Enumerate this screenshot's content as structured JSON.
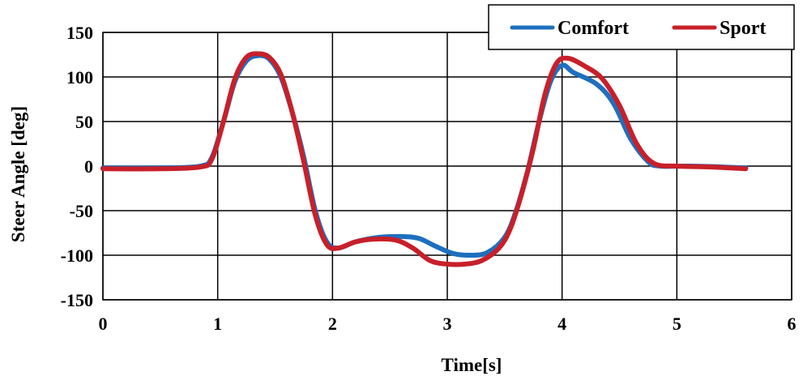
{
  "chart_data": {
    "type": "line",
    "title": "",
    "xlabel": "Time[s]",
    "ylabel": "Steer Angle  [deg]",
    "xlim": [
      0,
      6
    ],
    "ylim": [
      -150,
      150
    ],
    "xticks": [
      0,
      1,
      2,
      3,
      4,
      5,
      6
    ],
    "yticks": [
      -150,
      -100,
      -50,
      0,
      50,
      100,
      150
    ],
    "grid": {
      "vertical": true,
      "horizontal": true
    },
    "legend_position": "top-right",
    "series": [
      {
        "name": "Comfort",
        "color": "#1f6fbf",
        "points": [
          [
            0,
            -2
          ],
          [
            0.5,
            -2
          ],
          [
            0.85,
            0
          ],
          [
            0.95,
            10
          ],
          [
            1.05,
            50
          ],
          [
            1.15,
            95
          ],
          [
            1.25,
            118
          ],
          [
            1.35,
            124
          ],
          [
            1.45,
            120
          ],
          [
            1.55,
            100
          ],
          [
            1.65,
            60
          ],
          [
            1.75,
            10
          ],
          [
            1.85,
            -50
          ],
          [
            1.95,
            -85
          ],
          [
            2.05,
            -92
          ],
          [
            2.2,
            -85
          ],
          [
            2.4,
            -80
          ],
          [
            2.6,
            -79
          ],
          [
            2.75,
            -81
          ],
          [
            2.9,
            -90
          ],
          [
            3.05,
            -98
          ],
          [
            3.2,
            -100
          ],
          [
            3.35,
            -97
          ],
          [
            3.5,
            -80
          ],
          [
            3.6,
            -50
          ],
          [
            3.7,
            -5
          ],
          [
            3.8,
            50
          ],
          [
            3.9,
            95
          ],
          [
            4.0,
            113
          ],
          [
            4.1,
            105
          ],
          [
            4.3,
            92
          ],
          [
            4.45,
            70
          ],
          [
            4.6,
            30
          ],
          [
            4.75,
            5
          ],
          [
            4.85,
            0
          ],
          [
            5.1,
            0
          ],
          [
            5.4,
            -1
          ],
          [
            5.6,
            -2
          ]
        ]
      },
      {
        "name": "Sport",
        "color": "#c8202a",
        "points": [
          [
            0,
            -3
          ],
          [
            0.5,
            -3
          ],
          [
            0.85,
            -1
          ],
          [
            0.95,
            8
          ],
          [
            1.05,
            50
          ],
          [
            1.15,
            98
          ],
          [
            1.25,
            122
          ],
          [
            1.35,
            126
          ],
          [
            1.45,
            122
          ],
          [
            1.55,
            103
          ],
          [
            1.65,
            60
          ],
          [
            1.75,
            5
          ],
          [
            1.85,
            -55
          ],
          [
            1.95,
            -88
          ],
          [
            2.05,
            -92
          ],
          [
            2.2,
            -85
          ],
          [
            2.35,
            -82
          ],
          [
            2.55,
            -83
          ],
          [
            2.7,
            -92
          ],
          [
            2.85,
            -106
          ],
          [
            3.0,
            -110
          ],
          [
            3.15,
            -110
          ],
          [
            3.3,
            -106
          ],
          [
            3.45,
            -92
          ],
          [
            3.55,
            -70
          ],
          [
            3.65,
            -30
          ],
          [
            3.75,
            20
          ],
          [
            3.85,
            80
          ],
          [
            3.95,
            115
          ],
          [
            4.05,
            121
          ],
          [
            4.2,
            112
          ],
          [
            4.35,
            98
          ],
          [
            4.5,
            68
          ],
          [
            4.65,
            25
          ],
          [
            4.8,
            3
          ],
          [
            5.0,
            0
          ],
          [
            5.3,
            -1
          ],
          [
            5.6,
            -3
          ]
        ]
      }
    ]
  }
}
